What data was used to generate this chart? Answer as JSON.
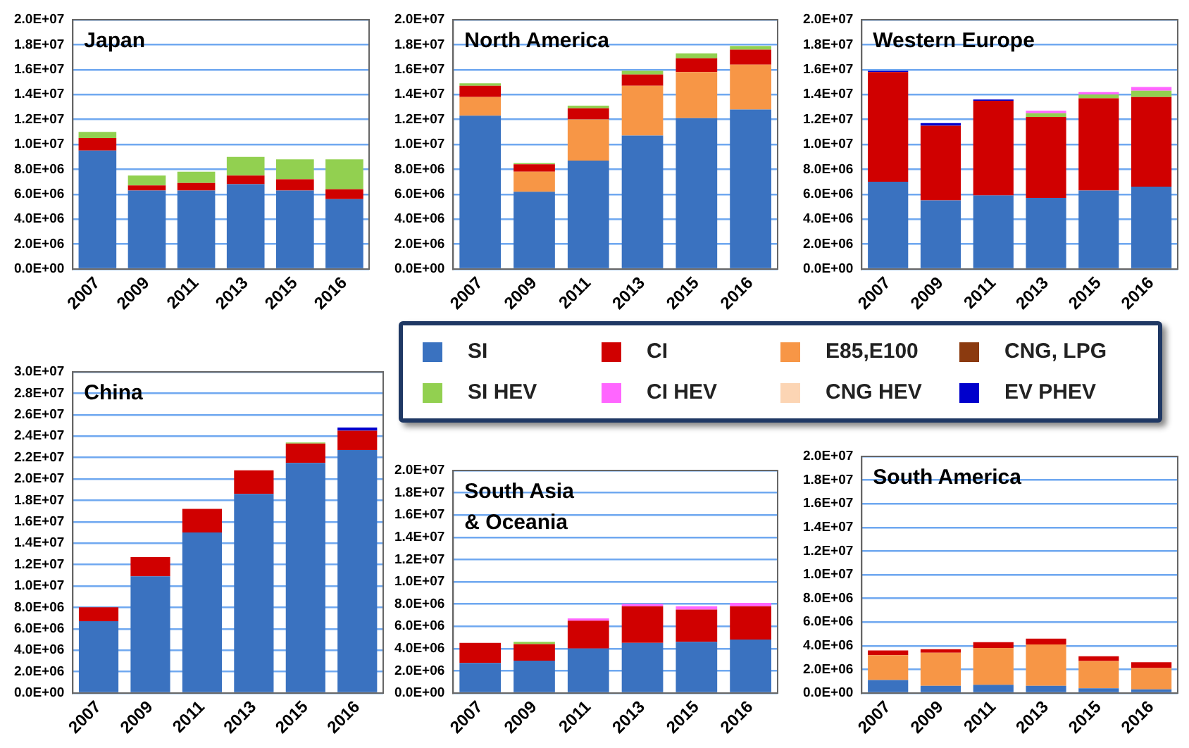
{
  "chart_data": [
    {
      "type": "bar",
      "stacked": true,
      "title": "Japan",
      "grid": "y",
      "categories": [
        "2007",
        "2009",
        "2011",
        "2013",
        "2015",
        "2016"
      ],
      "ylim": [
        0,
        20000000
      ],
      "yticks": [
        {
          "value": 0,
          "label": "0.0E+00"
        },
        {
          "value": 2000000,
          "label": "2.0E+06"
        },
        {
          "value": 4000000,
          "label": "4.0E+06"
        },
        {
          "value": 6000000,
          "label": "6.0E+06"
        },
        {
          "value": 8000000,
          "label": "8.0E+06"
        },
        {
          "value": 10000000,
          "label": "1.0E+07"
        },
        {
          "value": 12000000,
          "label": "1.2E+07"
        },
        {
          "value": 14000000,
          "label": "1.4E+07"
        },
        {
          "value": 16000000,
          "label": "1.6E+07"
        },
        {
          "value": 18000000,
          "label": "1.8E+07"
        },
        {
          "value": 20000000,
          "label": "2.0E+07"
        }
      ],
      "series": [
        {
          "color": "#3a72c0",
          "values": [
            9500000,
            6300000,
            6300000,
            6800000,
            6300000,
            5600000
          ]
        },
        {
          "color": "#d00000",
          "values": [
            1000000,
            400000,
            600000,
            700000,
            900000,
            800000
          ]
        },
        {
          "color": "#92d050",
          "values": [
            500000,
            800000,
            900000,
            1500000,
            1600000,
            2400000
          ]
        }
      ]
    },
    {
      "type": "bar",
      "stacked": true,
      "title": "North America",
      "grid": "y",
      "categories": [
        "2007",
        "2009",
        "2011",
        "2013",
        "2015",
        "2016"
      ],
      "ylim": [
        0,
        20000000
      ],
      "yticks": [
        {
          "value": 0,
          "label": "0.0E+00"
        },
        {
          "value": 2000000,
          "label": "2.0E+06"
        },
        {
          "value": 4000000,
          "label": "4.0E+06"
        },
        {
          "value": 6000000,
          "label": "6.0E+06"
        },
        {
          "value": 8000000,
          "label": "8.0E+06"
        },
        {
          "value": 10000000,
          "label": "1.0E+07"
        },
        {
          "value": 12000000,
          "label": "1.2E+07"
        },
        {
          "value": 14000000,
          "label": "1.4E+07"
        },
        {
          "value": 16000000,
          "label": "1.6E+07"
        },
        {
          "value": 18000000,
          "label": "1.8E+07"
        },
        {
          "value": 20000000,
          "label": "2.0E+07"
        }
      ],
      "series": [
        {
          "color": "#3a72c0",
          "values": [
            12300000,
            6200000,
            8700000,
            10700000,
            12100000,
            12800000
          ]
        },
        {
          "color": "#f79646",
          "values": [
            1500000,
            1600000,
            3300000,
            4000000,
            3700000,
            3600000
          ]
        },
        {
          "color": "#d00000",
          "values": [
            900000,
            600000,
            900000,
            900000,
            1100000,
            1200000
          ]
        },
        {
          "color": "#92d050",
          "values": [
            200000,
            100000,
            200000,
            300000,
            400000,
            300000
          ]
        }
      ]
    },
    {
      "type": "bar",
      "stacked": true,
      "title": "Western Europe",
      "grid": "y",
      "categories": [
        "2007",
        "2009",
        "2011",
        "2013",
        "2015",
        "2016"
      ],
      "ylim": [
        0,
        20000000
      ],
      "yticks": [
        {
          "value": 0,
          "label": "0.0E+00"
        },
        {
          "value": 2000000,
          "label": "2.0E+06"
        },
        {
          "value": 4000000,
          "label": "4.0E+06"
        },
        {
          "value": 6000000,
          "label": "6.0E+06"
        },
        {
          "value": 8000000,
          "label": "8.0E+06"
        },
        {
          "value": 10000000,
          "label": "1.0E+07"
        },
        {
          "value": 12000000,
          "label": "1.2E+07"
        },
        {
          "value": 14000000,
          "label": "1.4E+07"
        },
        {
          "value": 16000000,
          "label": "1.6E+07"
        },
        {
          "value": 18000000,
          "label": "1.8E+07"
        },
        {
          "value": 20000000,
          "label": "2.0E+07"
        }
      ],
      "series": [
        {
          "color": "#3a72c0",
          "values": [
            7000000,
            5500000,
            5900000,
            5700000,
            6300000,
            6600000
          ]
        },
        {
          "color": "#d00000",
          "values": [
            8800000,
            6000000,
            7600000,
            6500000,
            7400000,
            7200000
          ]
        },
        {
          "color": "#92d050",
          "values": [
            0,
            0,
            0,
            300000,
            300000,
            500000
          ]
        },
        {
          "color": "#ff66ff",
          "values": [
            0,
            0,
            0,
            200000,
            200000,
            300000
          ]
        },
        {
          "color": "#0000cc",
          "values": [
            100000,
            200000,
            100000,
            0,
            0,
            0
          ]
        }
      ]
    },
    {
      "type": "bar",
      "stacked": true,
      "title": "China",
      "grid": "y",
      "legend": "right",
      "categories": [
        "2007",
        "2009",
        "2011",
        "2013",
        "2015",
        "2016"
      ],
      "ylim": [
        0,
        30000000
      ],
      "yticks": [
        {
          "value": 0,
          "label": "0.0E+00"
        },
        {
          "value": 2000000,
          "label": "2.0E+06"
        },
        {
          "value": 4000000,
          "label": "4.0E+06"
        },
        {
          "value": 6000000,
          "label": "6.0E+06"
        },
        {
          "value": 8000000,
          "label": "8.0E+06"
        },
        {
          "value": 10000000,
          "label": "1.0E+07"
        },
        {
          "value": 12000000,
          "label": "1.2E+07"
        },
        {
          "value": 14000000,
          "label": "1.4E+07"
        },
        {
          "value": 16000000,
          "label": "1.6E+07"
        },
        {
          "value": 18000000,
          "label": "1.8E+07"
        },
        {
          "value": 20000000,
          "label": "2.0E+07"
        },
        {
          "value": 22000000,
          "label": "2.2E+07"
        },
        {
          "value": 24000000,
          "label": "2.4E+07"
        },
        {
          "value": 26000000,
          "label": "2.6E+07"
        },
        {
          "value": 28000000,
          "label": "2.8E+07"
        },
        {
          "value": 30000000,
          "label": "3.0E+07"
        }
      ],
      "series": [
        {
          "name": "SI",
          "color": "#3a72c0",
          "values": [
            6700000,
            10900000,
            15000000,
            18600000,
            21500000,
            22700000
          ]
        },
        {
          "name": "CI",
          "color": "#d00000",
          "values": [
            1300000,
            1800000,
            2200000,
            2200000,
            1800000,
            1800000
          ]
        },
        {
          "name": "E85,E100",
          "color": "#f79646",
          "values": [
            0,
            0,
            0,
            0,
            0,
            0
          ]
        },
        {
          "name": "CNG, LPG",
          "color": "#8b3a0f",
          "values": [
            0,
            0,
            0,
            0,
            0,
            0
          ]
        },
        {
          "name": "SI HEV",
          "color": "#92d050",
          "values": [
            0,
            0,
            0,
            0,
            100000,
            0
          ]
        },
        {
          "name": "CI HEV",
          "color": "#ff66ff",
          "values": [
            0,
            0,
            0,
            0,
            0,
            0
          ]
        },
        {
          "name": "CNG HEV",
          "color": "#fcd5b4",
          "values": [
            0,
            0,
            0,
            0,
            0,
            0
          ]
        },
        {
          "name": "EV PHEV",
          "color": "#0000cc",
          "values": [
            0,
            0,
            0,
            0,
            0,
            300000
          ]
        }
      ]
    },
    {
      "type": "bar",
      "stacked": true,
      "title": "South Asia\n& Oceania",
      "grid": "y",
      "categories": [
        "2007",
        "2009",
        "2011",
        "2013",
        "2015",
        "2016"
      ],
      "ylim": [
        0,
        20000000
      ],
      "yticks": [
        {
          "value": 0,
          "label": "0.0E+00"
        },
        {
          "value": 2000000,
          "label": "2.0E+06"
        },
        {
          "value": 4000000,
          "label": "4.0E+06"
        },
        {
          "value": 6000000,
          "label": "6.0E+06"
        },
        {
          "value": 8000000,
          "label": "8.0E+06"
        },
        {
          "value": 10000000,
          "label": "1.0E+07"
        },
        {
          "value": 12000000,
          "label": "1.2E+07"
        },
        {
          "value": 14000000,
          "label": "1.4E+07"
        },
        {
          "value": 16000000,
          "label": "1.6E+07"
        },
        {
          "value": 18000000,
          "label": "1.8E+07"
        },
        {
          "value": 20000000,
          "label": "2.0E+07"
        }
      ],
      "series": [
        {
          "color": "#3a72c0",
          "values": [
            2700000,
            2900000,
            4000000,
            4500000,
            4600000,
            4800000
          ]
        },
        {
          "color": "#d00000",
          "values": [
            1800000,
            1500000,
            2500000,
            3300000,
            2900000,
            3000000
          ]
        },
        {
          "color": "#92d050",
          "values": [
            0,
            200000,
            0,
            0,
            0,
            0
          ]
        },
        {
          "color": "#ff66ff",
          "values": [
            0,
            0,
            200000,
            200000,
            300000,
            300000
          ]
        }
      ]
    },
    {
      "type": "bar",
      "stacked": true,
      "title": "South America",
      "grid": "y",
      "categories": [
        "2007",
        "2009",
        "2011",
        "2013",
        "2015",
        "2016"
      ],
      "ylim": [
        0,
        20000000
      ],
      "yticks": [
        {
          "value": 0,
          "label": "0.0E+00"
        },
        {
          "value": 2000000,
          "label": "2.0E+06"
        },
        {
          "value": 4000000,
          "label": "4.0E+06"
        },
        {
          "value": 6000000,
          "label": "6.0E+06"
        },
        {
          "value": 8000000,
          "label": "8.0E+06"
        },
        {
          "value": 10000000,
          "label": "1.0E+07"
        },
        {
          "value": 12000000,
          "label": "1.2E+07"
        },
        {
          "value": 14000000,
          "label": "1.4E+07"
        },
        {
          "value": 16000000,
          "label": "1.6E+07"
        },
        {
          "value": 18000000,
          "label": "1.8E+07"
        },
        {
          "value": 20000000,
          "label": "2.0E+07"
        }
      ],
      "series": [
        {
          "color": "#3a72c0",
          "values": [
            1100000,
            600000,
            700000,
            600000,
            400000,
            300000
          ]
        },
        {
          "color": "#f79646",
          "values": [
            2100000,
            2800000,
            3100000,
            3500000,
            2300000,
            1800000
          ]
        },
        {
          "color": "#d00000",
          "values": [
            400000,
            300000,
            500000,
            500000,
            400000,
            500000
          ]
        }
      ]
    }
  ]
}
